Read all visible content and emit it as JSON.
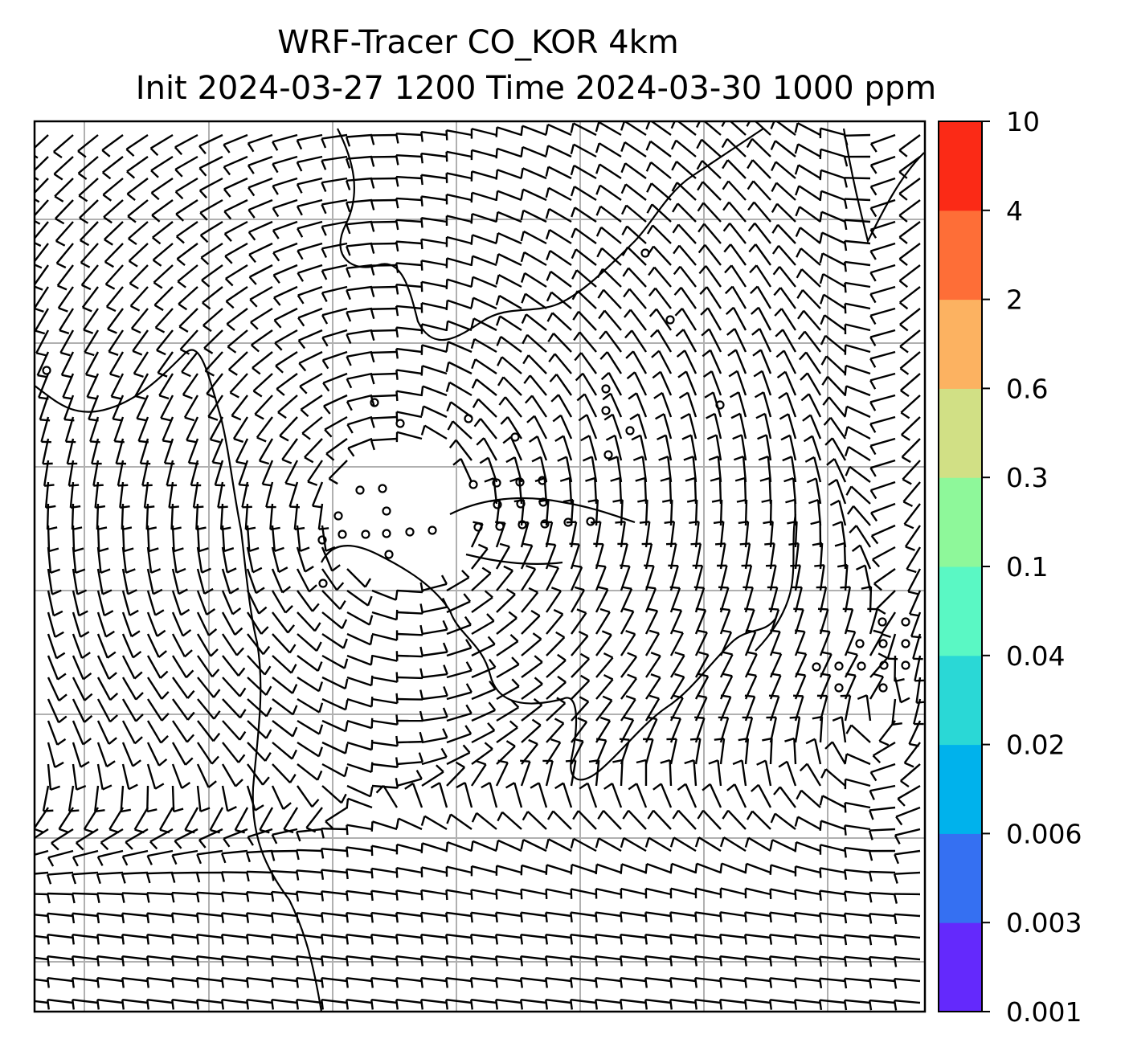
{
  "title": {
    "line1": "WRF-Tracer CO_KOR 4km",
    "line2": "Init 2024-03-27 1200 Time 2024-03-30 1000 ppm"
  },
  "colorbar": {
    "levels": [
      "0.001",
      "0.003",
      "0.006",
      "0.02",
      "0.04",
      "0.1",
      "0.3",
      "0.6",
      "2",
      "4",
      "10"
    ],
    "colors": [
      "#6429fc",
      "#3570f2",
      "#00b2ec",
      "#2ad8d6",
      "#5af8c4",
      "#8ef89a",
      "#d1e085",
      "#fcb261",
      "#fe6e37",
      "#fb2a16"
    ]
  },
  "map": {
    "layers": [
      "wind-barbs",
      "coastlines",
      "lat-lon-grid",
      "calm-wind-circles"
    ],
    "grid_color": "#b0b0b0",
    "line_color": "#000000"
  }
}
